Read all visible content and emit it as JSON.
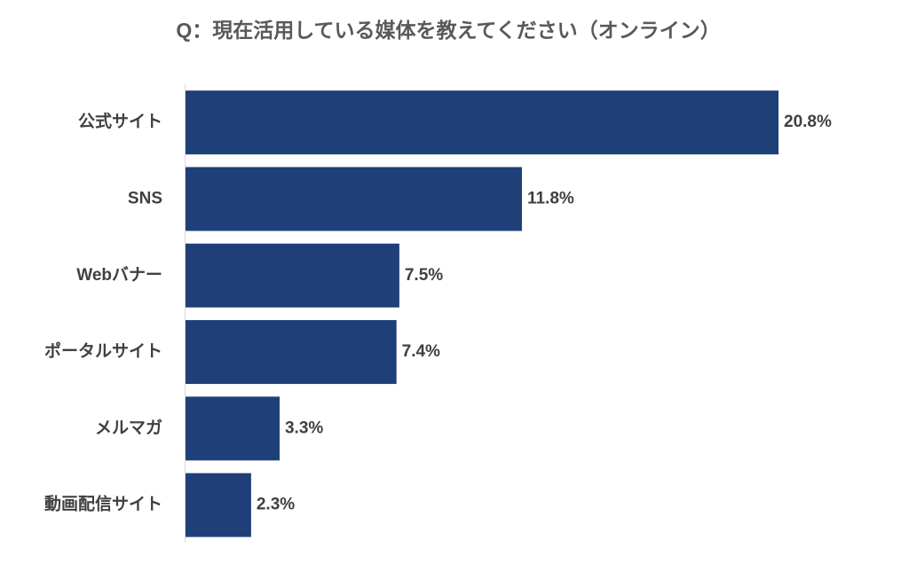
{
  "chart_data": {
    "type": "hbar",
    "title": "Q：現在活用している媒体を教えてください（オンライン）",
    "categories": [
      "公式サイト",
      "SNS",
      "Webバナー",
      "ポータルサイト",
      "メルマガ",
      "動画配信サイト"
    ],
    "values": [
      20.8,
      11.8,
      7.5,
      7.4,
      3.3,
      2.3
    ],
    "value_labels": [
      "20.8%",
      "11.8%",
      "7.5%",
      "7.4%",
      "3.3%",
      "2.3%"
    ],
    "color": "#1f3f78"
  }
}
